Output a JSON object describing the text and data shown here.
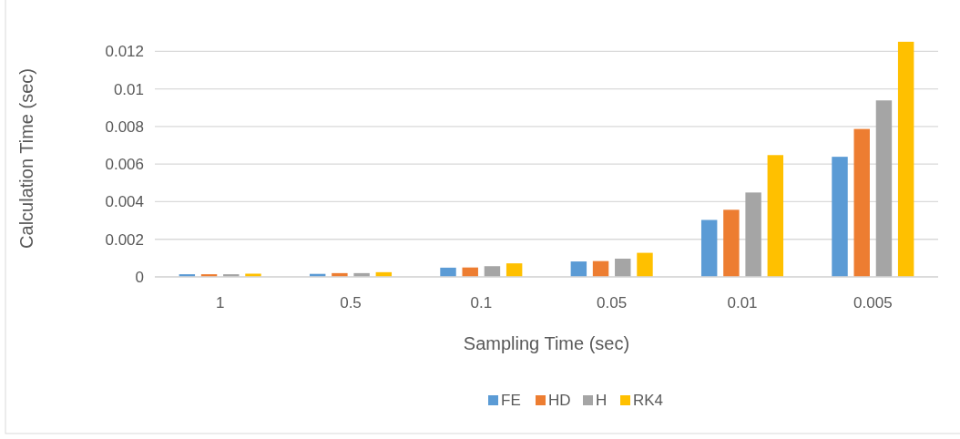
{
  "chart_data": {
    "type": "bar",
    "xlabel": "Sampling Time (sec)",
    "ylabel": "Calculation Time (sec)",
    "categories": [
      "1",
      "0.5",
      "0.1",
      "0.05",
      "0.01",
      "0.005"
    ],
    "series": [
      {
        "name": "FE",
        "color": "#5b9bd5",
        "values": [
          0.00014,
          0.00016,
          0.00049,
          0.00082,
          0.00303,
          0.00639
        ]
      },
      {
        "name": "HD",
        "color": "#ed7d31",
        "values": [
          0.00014,
          0.0002,
          0.0005,
          0.00084,
          0.00357,
          0.00787
        ]
      },
      {
        "name": "H",
        "color": "#a5a5a5",
        "values": [
          0.00014,
          0.0002,
          0.00057,
          0.00097,
          0.00449,
          0.00939
        ]
      },
      {
        "name": "RK4",
        "color": "#ffc000",
        "values": [
          0.00017,
          0.00025,
          0.00072,
          0.00128,
          0.00648,
          0.01251
        ]
      }
    ],
    "ylim": [
      0,
      0.0126
    ],
    "yticks": [
      0,
      0.002,
      0.004,
      0.006,
      0.008,
      0.01,
      0.012
    ],
    "grid": "y",
    "legend": "bottom"
  }
}
